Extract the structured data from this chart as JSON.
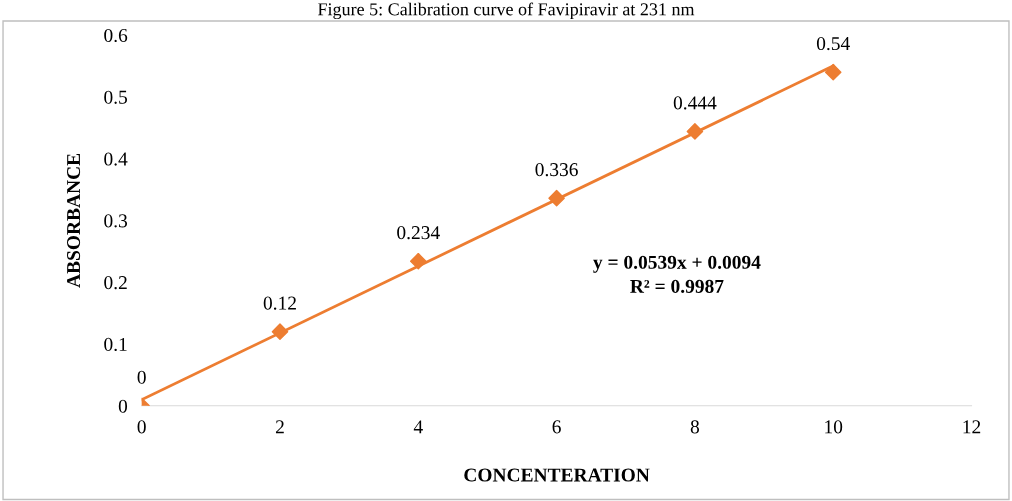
{
  "chart_data": {
    "type": "scatter",
    "title": "Figure 5: Calibration curve of Favipiravir at 231 nm",
    "xlabel": "CONCENTERATION",
    "ylabel": "ABSORBANCE",
    "x": [
      0,
      2,
      4,
      6,
      8,
      10
    ],
    "series": [
      {
        "color": "#ed7d31",
        "values": [
          0,
          0.12,
          0.234,
          0.336,
          0.444,
          0.54
        ],
        "marker": "diamond",
        "data_labels": true
      },
      {
        "type": "line",
        "color": "#ed7d31",
        "x": [
          0,
          10
        ],
        "values": [
          0.01,
          0.55
        ],
        "marker": "none",
        "line_style": "solid"
      }
    ],
    "annotations": [
      "y = 0.0539x + 0.0094",
      "R² = 0.9987"
    ],
    "xlim": [
      0,
      12
    ],
    "xticks": [
      0,
      2,
      4,
      6,
      8,
      10,
      12
    ],
    "ylim": [
      0,
      0.6
    ],
    "yticks": [
      0,
      0.1,
      0.2,
      0.3,
      0.4,
      0.5,
      0.6
    ],
    "grid": false,
    "legend": false
  }
}
